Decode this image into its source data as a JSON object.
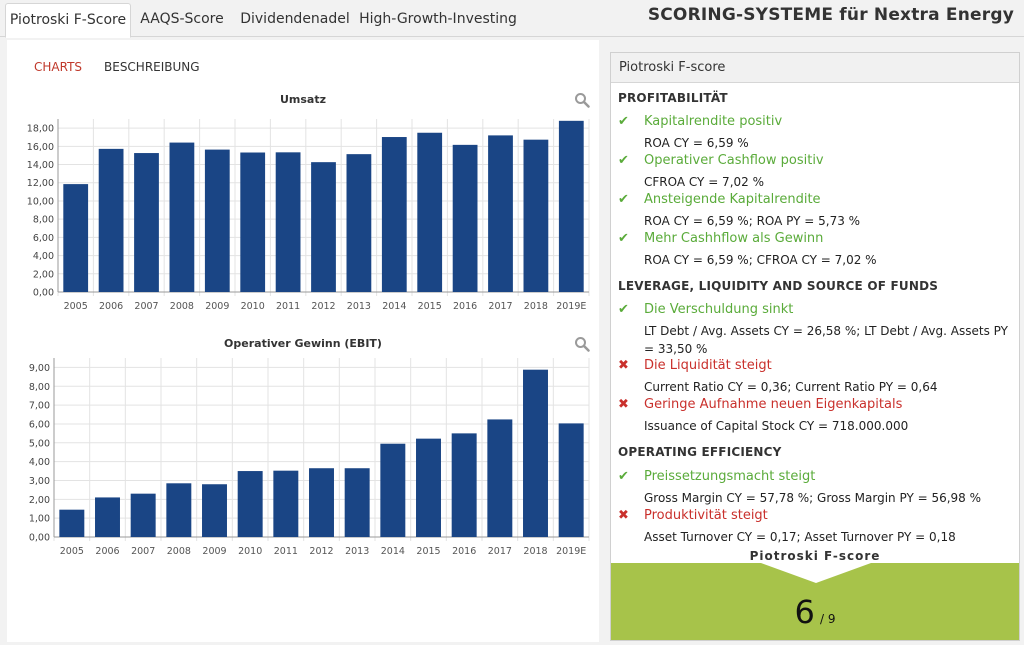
{
  "tabs": [
    {
      "label": "Piotroski F-Score",
      "active": true
    },
    {
      "label": "AAQS-Score",
      "active": false
    },
    {
      "label": "Dividendenadel",
      "active": false
    },
    {
      "label": "High-Growth-Investing",
      "active": false
    }
  ],
  "page_title": "SCORING-SYSTEME für Nextra Energy",
  "subtabs": [
    {
      "label": "CHARTS",
      "active": true
    },
    {
      "label": "BESCHREIBUNG",
      "active": false
    }
  ],
  "colors": {
    "bar": "#1a4585",
    "pass": "#5aab3a",
    "fail": "#c9302c",
    "score_bg": "#a7c34a",
    "active_subtab": "#c0392b"
  },
  "icons": {
    "zoom": "magnifier-icon",
    "pass": "checkmark-icon",
    "fail": "cross-icon"
  },
  "chart_data": [
    {
      "type": "bar",
      "title": "Umsatz",
      "categories": [
        "2005",
        "2006",
        "2007",
        "2008",
        "2009",
        "2010",
        "2011",
        "2012",
        "2013",
        "2014",
        "2015",
        "2016",
        "2017",
        "2018",
        "2019E"
      ],
      "values": [
        11.85,
        15.72,
        15.26,
        16.41,
        15.64,
        15.32,
        15.34,
        14.26,
        15.14,
        17.02,
        17.49,
        16.16,
        17.2,
        16.73,
        18.8
      ],
      "yticks": [
        "0,00",
        "2,00",
        "4,00",
        "6,00",
        "8,00",
        "10,00",
        "12,00",
        "14,00",
        "16,00",
        "18,00"
      ],
      "ylim": [
        0,
        19
      ],
      "grid": true
    },
    {
      "type": "bar",
      "title": "Operativer Gewinn (EBIT)",
      "categories": [
        "2005",
        "2006",
        "2007",
        "2008",
        "2009",
        "2010",
        "2011",
        "2012",
        "2013",
        "2014",
        "2015",
        "2016",
        "2017",
        "2018",
        "2019E"
      ],
      "values": [
        1.45,
        2.1,
        2.3,
        2.85,
        2.8,
        3.5,
        3.52,
        3.65,
        3.65,
        4.95,
        5.22,
        5.5,
        6.24,
        8.88,
        6.03
      ],
      "yticks": [
        "0,00",
        "1,00",
        "2,00",
        "3,00",
        "4,00",
        "5,00",
        "6,00",
        "7,00",
        "8,00",
        "9,00"
      ],
      "ylim": [
        0,
        9.5
      ],
      "grid": true
    }
  ],
  "score_panel": {
    "header": "Piotroski F-score",
    "sections": [
      {
        "title": "PROFITABILITÄT",
        "criteria": [
          {
            "pass": true,
            "title": "Kapitalrendite positiv",
            "detail": "ROA CY = 6,59 %"
          },
          {
            "pass": true,
            "title": "Operativer Cashflow positiv",
            "detail": "CFROA CY = 7,02 %"
          },
          {
            "pass": true,
            "title": "Ansteigende Kapitalrendite",
            "detail": "ROA CY = 6,59 %; ROA PY = 5,73 %"
          },
          {
            "pass": true,
            "title": "Mehr Cashhflow als Gewinn",
            "detail": "ROA CY = 6,59 %; CFROA CY = 7,02 %"
          }
        ]
      },
      {
        "title": "LEVERAGE, LIQUIDITY AND SOURCE OF FUNDS",
        "criteria": [
          {
            "pass": true,
            "title": "Die Verschuldung sinkt",
            "detail": "LT Debt / Avg. Assets CY = 26,58 %; LT Debt / Avg. Assets PY = 33,50 %"
          },
          {
            "pass": false,
            "title": "Die Liquidität steigt",
            "detail": "Current Ratio CY = 0,36; Current Ratio PY = 0,64"
          },
          {
            "pass": false,
            "title": "Geringe Aufnahme neuen Eigenkapitals",
            "detail": "Issuance of Capital Stock CY = 718.000.000"
          }
        ]
      },
      {
        "title": "OPERATING EFFICIENCY",
        "criteria": [
          {
            "pass": true,
            "title": "Preissetzungsmacht steigt",
            "detail": "Gross Margin CY = 57,78 %; Gross Margin PY = 56,98 %"
          },
          {
            "pass": false,
            "title": "Produktivität steigt",
            "detail": "Asset Turnover CY = 0,17; Asset Turnover PY = 0,18"
          }
        ]
      }
    ],
    "score_label": "Piotroski F-score",
    "score": "6",
    "score_max": "/ 9"
  }
}
